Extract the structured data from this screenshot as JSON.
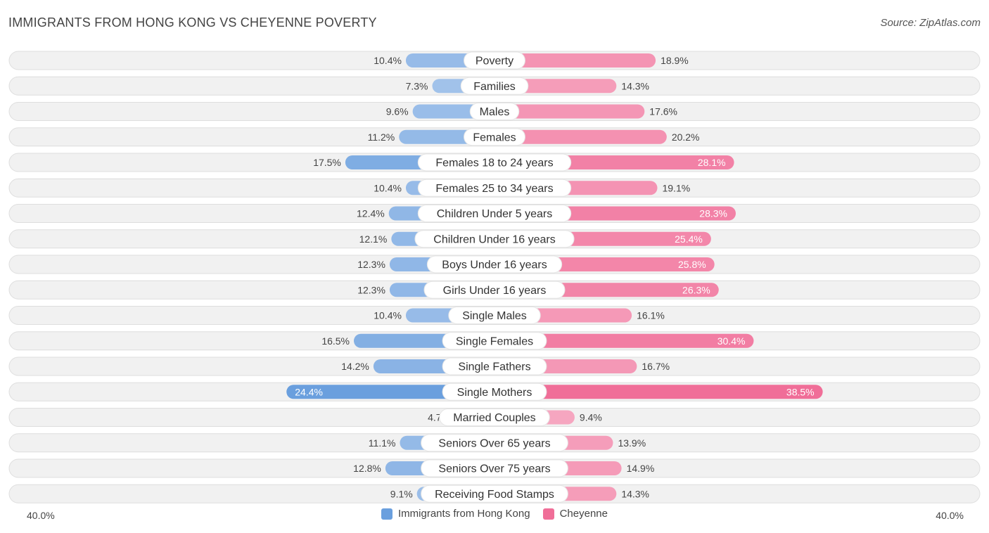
{
  "header": {
    "title": "IMMIGRANTS FROM HONG KONG VS CHEYENNE POVERTY",
    "source": "Source: ZipAtlas.com"
  },
  "colors": {
    "left_strong": "#6a9fde",
    "left_light": "#a9c7ec",
    "right_strong": "#f06e98",
    "right_light": "#f6a6c0",
    "row_bg": "#f1f1f1",
    "row_border": "#dedede"
  },
  "chart_data": {
    "type": "bar",
    "orientation": "horizontal-diverging",
    "title": "IMMIGRANTS FROM HONG KONG VS CHEYENNE POVERTY",
    "xlim": [
      -40,
      40
    ],
    "axis_min_label": "40.0%",
    "axis_max_label": "40.0%",
    "categories": [
      "Poverty",
      "Families",
      "Males",
      "Females",
      "Females 18 to 24 years",
      "Females 25 to 34 years",
      "Children Under 5 years",
      "Children Under 16 years",
      "Boys Under 16 years",
      "Girls Under 16 years",
      "Single Males",
      "Single Females",
      "Single Fathers",
      "Single Mothers",
      "Married Couples",
      "Seniors Over 65 years",
      "Seniors Over 75 years",
      "Receiving Food Stamps"
    ],
    "series": [
      {
        "name": "Immigrants from Hong Kong",
        "side": "left",
        "values": [
          10.4,
          7.3,
          9.6,
          11.2,
          17.5,
          10.4,
          12.4,
          12.1,
          12.3,
          12.3,
          10.4,
          16.5,
          14.2,
          24.4,
          4.7,
          11.1,
          12.8,
          9.1
        ],
        "labels": [
          "10.4%",
          "7.3%",
          "9.6%",
          "11.2%",
          "17.5%",
          "10.4%",
          "12.4%",
          "12.1%",
          "12.3%",
          "12.3%",
          "10.4%",
          "16.5%",
          "14.2%",
          "24.4%",
          "4.7%",
          "11.1%",
          "12.8%",
          "9.1%"
        ]
      },
      {
        "name": "Cheyenne",
        "side": "right",
        "values": [
          18.9,
          14.3,
          17.6,
          20.2,
          28.1,
          19.1,
          28.3,
          25.4,
          25.8,
          26.3,
          16.1,
          30.4,
          16.7,
          38.5,
          9.4,
          13.9,
          14.9,
          14.3
        ],
        "labels": [
          "18.9%",
          "14.3%",
          "17.6%",
          "20.2%",
          "28.1%",
          "19.1%",
          "28.3%",
          "25.4%",
          "25.8%",
          "26.3%",
          "16.1%",
          "30.4%",
          "16.7%",
          "38.5%",
          "9.4%",
          "13.9%",
          "14.9%",
          "14.3%"
        ]
      }
    ],
    "legend": [
      "Immigrants from Hong Kong",
      "Cheyenne"
    ],
    "legend_position": "bottom-center"
  }
}
